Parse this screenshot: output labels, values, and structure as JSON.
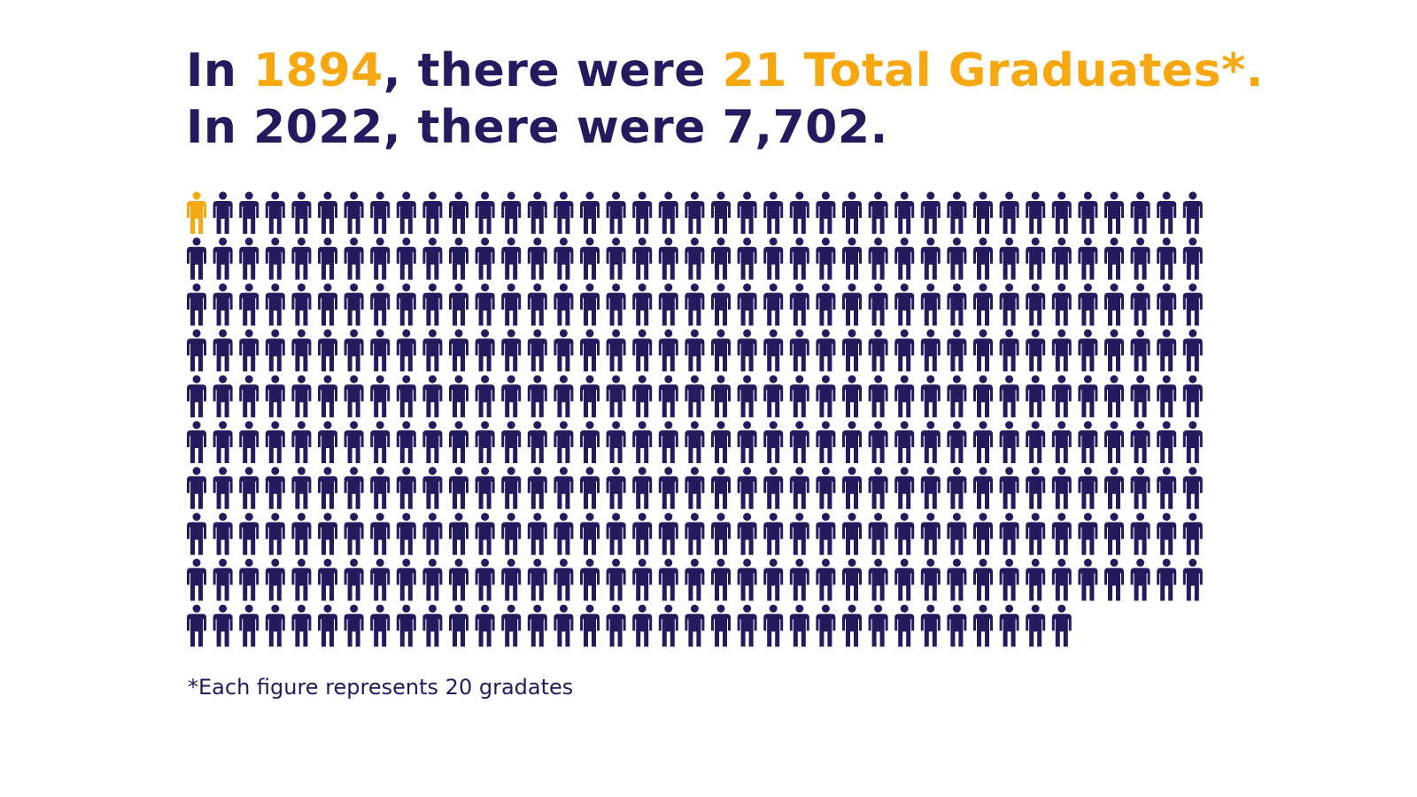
{
  "chart_data": {
    "type": "pictogram",
    "title": {
      "line1": [
        "In ",
        "1894",
        ", there were ",
        "21 Total Graduates*."
      ],
      "line2": "In 2022, there were 7,702."
    },
    "values": [
      21,
      7702
    ],
    "unit_per_icon": 20,
    "color": "#241a5e",
    "highlight_color": "#f7a70f",
    "note": "*Each figure represents 20 gradates"
  }
}
